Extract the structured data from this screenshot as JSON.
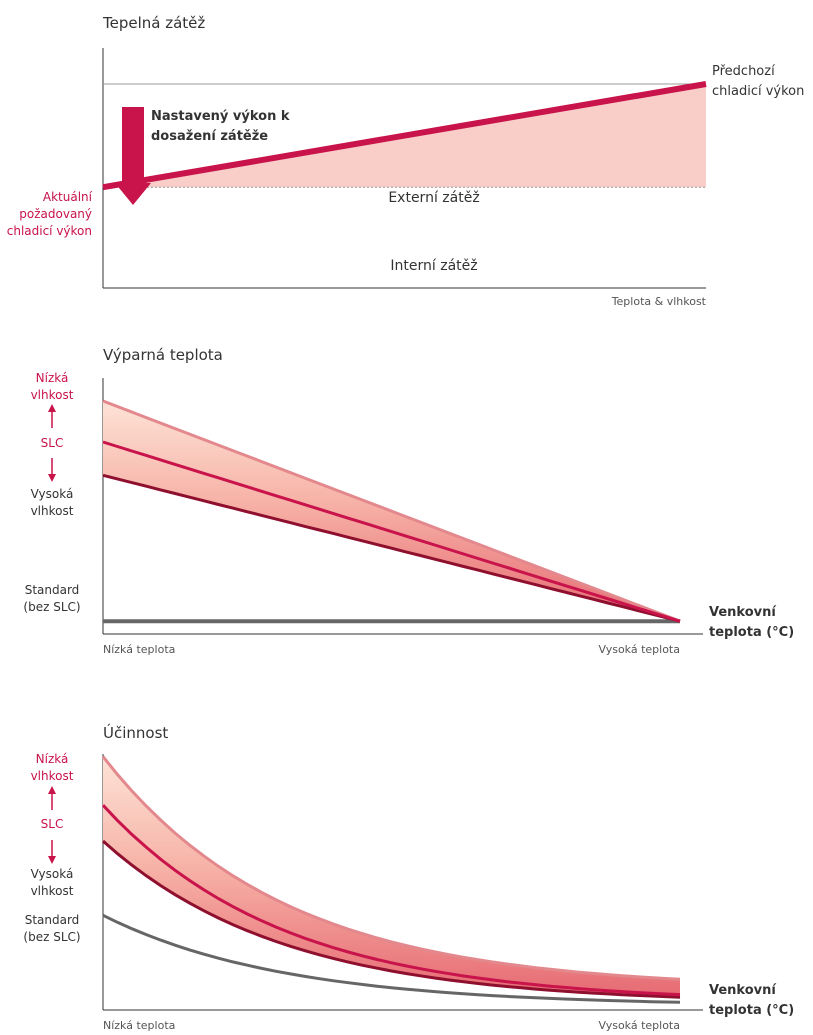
{
  "colors": {
    "accent": "#c8134b",
    "dark_red": "#8f0f2e",
    "fill_light": "#f9cdc8",
    "fill_mid": "#f08f8f",
    "band_outline": "#e3888d",
    "gray": "#666666",
    "axis": "#333333"
  },
  "chart_data": [
    {
      "type": "area",
      "title": "Tepelná zátěž",
      "xlabel": "Teplota & vlhkost",
      "ylabel": "",
      "series": [
        {
          "name": "Aktuální požadovaný chladicí výkon",
          "x": [
            0,
            1
          ],
          "values": [
            0.42,
            0.85
          ]
        }
      ],
      "reference_lines": [
        {
          "label": "Předchozí chladicí výkon",
          "value": 0.85
        },
        {
          "label": "",
          "value": 0.42
        }
      ],
      "regions": [
        "Externí zátěž",
        "Interní zátěž"
      ],
      "annotation": "Nastavený výkon k dosažení zátěže",
      "left_label": "Aktuální požadovaný chladicí výkon",
      "right_label": "Předchozí chladicí výkon"
    },
    {
      "type": "line",
      "title": "Výparná teplota",
      "x": [
        0,
        1
      ],
      "xtick_labels": [
        "Nízká teplota",
        "Vysoká teplota"
      ],
      "xlabel": "Venkovní teplota (°C)",
      "series": [
        {
          "name": "Nízká vlhkost",
          "values": [
            0.91,
            0.05
          ]
        },
        {
          "name": "SLC",
          "values": [
            0.75,
            0.05
          ]
        },
        {
          "name": "Vysoká vlhkost",
          "values": [
            0.62,
            0.05
          ]
        },
        {
          "name": "Standard (bez SLC)",
          "values": [
            0.05,
            0.05
          ]
        }
      ],
      "y_labels": {
        "top": "Nízká vlhkost",
        "mid": "SLC",
        "bottom": "Vysoká vlhkost",
        "standard": "Standard (bez SLC)"
      }
    },
    {
      "type": "line",
      "title": "Účinnost",
      "x": [
        0,
        1
      ],
      "xtick_labels": [
        "Nízká teplota",
        "Vysoká teplota"
      ],
      "xlabel": "Venkovní teplota (°C)",
      "series": [
        {
          "name": "Nízká vlhkost",
          "values": [
            0.99,
            0.12
          ]
        },
        {
          "name": "SLC",
          "values": [
            0.8,
            0.06
          ]
        },
        {
          "name": "Vysoká vlhkost",
          "values": [
            0.66,
            0.05
          ]
        },
        {
          "name": "Standard (bez SLC)",
          "values": [
            0.37,
            0.03
          ]
        }
      ],
      "y_labels": {
        "top": "Nízká vlhkost",
        "mid": "SLC",
        "bottom": "Vysoká vlhkost",
        "standard": "Standard (bez SLC)"
      }
    }
  ]
}
